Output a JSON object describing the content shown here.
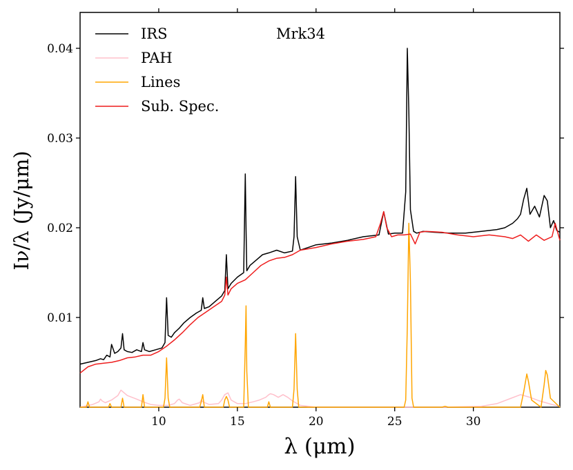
{
  "chart_data": {
    "type": "line",
    "annotation": "Mrk34",
    "xlabel": "λ (μm)",
    "ylabel": "Iν/λ (Jy/μm)",
    "xlim": [
      5.0,
      35.5
    ],
    "ylim": [
      0.0,
      0.044
    ],
    "xticks": [
      10,
      15,
      20,
      25,
      30
    ],
    "xtick_labels": [
      "10",
      "15",
      "20",
      "25",
      "30"
    ],
    "yticks": [
      0.01,
      0.02,
      0.03,
      0.04
    ],
    "ytick_labels": [
      "0.01",
      "0.02",
      "0.03",
      "0.04"
    ],
    "legend_position": "top-left",
    "series": [
      {
        "name": "IRS",
        "color": "#000000",
        "x": [
          5.0,
          5.5,
          6.0,
          6.3,
          6.5,
          6.7,
          6.9,
          7.0,
          7.2,
          7.4,
          7.6,
          7.7,
          7.8,
          8.0,
          8.3,
          8.6,
          8.9,
          9.0,
          9.1,
          9.4,
          9.8,
          10.2,
          10.4,
          10.5,
          10.6,
          10.8,
          11.0,
          11.3,
          11.6,
          12.0,
          12.4,
          12.7,
          12.8,
          12.9,
          13.2,
          13.6,
          14.0,
          14.2,
          14.3,
          14.4,
          14.6,
          15.0,
          15.4,
          15.5,
          15.55,
          15.6,
          15.8,
          16.2,
          16.6,
          17.0,
          17.5,
          18.0,
          18.5,
          18.6,
          18.7,
          18.8,
          19.0,
          19.5,
          20.0,
          21.0,
          22.0,
          23.0,
          24.0,
          24.3,
          24.6,
          25.0,
          25.5,
          25.7,
          25.8,
          25.9,
          26.0,
          26.2,
          26.4,
          26.8,
          27.5,
          28.5,
          29.5,
          30.5,
          31.5,
          32.0,
          32.5,
          32.8,
          33.0,
          33.2,
          33.4,
          33.6,
          33.9,
          34.2,
          34.5,
          34.7,
          34.9,
          35.1,
          35.3,
          35.5
        ],
        "y": [
          0.0048,
          0.005,
          0.0052,
          0.0054,
          0.0053,
          0.0058,
          0.0056,
          0.007,
          0.006,
          0.0062,
          0.0066,
          0.0082,
          0.0064,
          0.0062,
          0.0061,
          0.0064,
          0.0062,
          0.0072,
          0.0064,
          0.0062,
          0.0064,
          0.0066,
          0.0072,
          0.0122,
          0.008,
          0.0078,
          0.0083,
          0.0088,
          0.0094,
          0.01,
          0.0105,
          0.0108,
          0.0122,
          0.011,
          0.0112,
          0.0118,
          0.0124,
          0.013,
          0.017,
          0.0132,
          0.0138,
          0.0145,
          0.015,
          0.026,
          0.02,
          0.0152,
          0.0158,
          0.0164,
          0.017,
          0.0172,
          0.0175,
          0.0172,
          0.0174,
          0.019,
          0.0257,
          0.019,
          0.0175,
          0.0178,
          0.0181,
          0.0183,
          0.0186,
          0.019,
          0.0192,
          0.0218,
          0.0193,
          0.0194,
          0.0194,
          0.024,
          0.04,
          0.033,
          0.022,
          0.0196,
          0.0194,
          0.0196,
          0.0195,
          0.0194,
          0.0194,
          0.0196,
          0.0198,
          0.02,
          0.0205,
          0.021,
          0.0215,
          0.0232,
          0.0244,
          0.0215,
          0.0224,
          0.0212,
          0.0236,
          0.023,
          0.02,
          0.0208,
          0.0197,
          0.0195
        ]
      },
      {
        "name": "PAH",
        "color": "#ffc0cb",
        "x": [
          5.0,
          5.8,
          6.2,
          6.3,
          6.4,
          6.6,
          7.0,
          7.4,
          7.6,
          7.8,
          8.0,
          8.3,
          8.6,
          9.0,
          9.5,
          10.0,
          10.6,
          11.0,
          11.2,
          11.3,
          11.5,
          12.0,
          12.6,
          12.7,
          12.8,
          13.2,
          13.8,
          14.0,
          14.2,
          14.4,
          14.6,
          15.0,
          15.5,
          16.0,
          16.4,
          16.8,
          17.0,
          17.1,
          17.3,
          17.6,
          17.9,
          18.2,
          18.5,
          19.0,
          20.0,
          24.0,
          28.0,
          30.5,
          31.5,
          32.4,
          33.0,
          33.6,
          34.2,
          35.0,
          35.5
        ],
        "y": [
          0.0,
          0.0003,
          0.0006,
          0.0009,
          0.0007,
          0.0005,
          0.0008,
          0.0013,
          0.0019,
          0.0016,
          0.0013,
          0.0011,
          0.0009,
          0.0006,
          0.0003,
          0.0002,
          0.0002,
          0.0004,
          0.0008,
          0.0009,
          0.0005,
          0.0002,
          0.0005,
          0.0008,
          0.0006,
          0.0003,
          0.0004,
          0.0008,
          0.0014,
          0.0016,
          0.0008,
          0.0004,
          0.0004,
          0.0006,
          0.0008,
          0.0011,
          0.0014,
          0.0015,
          0.0014,
          0.0011,
          0.0014,
          0.0011,
          0.0007,
          0.0002,
          0.0,
          0.0,
          0.0,
          0.0001,
          0.0004,
          0.001,
          0.0014,
          0.0011,
          0.0007,
          0.0003,
          0.0001
        ]
      },
      {
        "name": "Lines",
        "color": "#ffa500",
        "x": [
          5.0,
          5.4,
          5.5,
          5.6,
          6.0,
          6.8,
          6.9,
          7.0,
          7.6,
          7.7,
          7.8,
          8.9,
          9.0,
          9.1,
          10.3,
          10.4,
          10.5,
          10.6,
          10.7,
          12.6,
          12.7,
          12.8,
          12.9,
          14.1,
          14.2,
          14.3,
          14.4,
          14.5,
          15.4,
          15.5,
          15.55,
          15.6,
          15.7,
          16.9,
          17.0,
          17.1,
          18.5,
          18.6,
          18.7,
          18.8,
          18.9,
          25.6,
          25.7,
          25.8,
          25.9,
          26.0,
          26.1,
          26.2,
          26.3,
          28.0,
          28.2,
          28.4,
          33.0,
          33.2,
          33.4,
          33.5,
          33.7,
          34.3,
          34.5,
          34.6,
          34.7,
          34.9,
          35.5
        ],
        "y": [
          0.0,
          0.0,
          0.0006,
          0.0,
          0.0,
          0.0,
          0.0004,
          0.0,
          0.0,
          0.001,
          0.0,
          0.0,
          0.0014,
          0.0,
          0.0,
          0.001,
          0.0055,
          0.001,
          0.0,
          0.0,
          0.0006,
          0.0014,
          0.0,
          0.0,
          0.0008,
          0.0012,
          0.0008,
          0.0,
          0.0,
          0.007,
          0.0113,
          0.004,
          0.0,
          0.0,
          0.0006,
          0.0,
          0.0,
          0.002,
          0.0082,
          0.002,
          0.0,
          0.0,
          0.0008,
          0.009,
          0.0205,
          0.014,
          0.001,
          0.0,
          0.0,
          0.0,
          0.0001,
          0.0,
          0.0,
          0.0017,
          0.0037,
          0.0029,
          0.0008,
          0.0,
          0.0025,
          0.0041,
          0.0036,
          0.001,
          0.0
        ]
      },
      {
        "name": "Sub. Spec.",
        "color": "#ee1c1c",
        "x": [
          5.0,
          5.5,
          6.0,
          6.5,
          7.0,
          7.5,
          8.0,
          8.5,
          9.0,
          9.5,
          10.0,
          10.5,
          11.0,
          11.5,
          12.0,
          12.5,
          13.0,
          13.5,
          14.0,
          14.2,
          14.3,
          14.4,
          14.6,
          15.0,
          15.5,
          16.0,
          16.5,
          17.0,
          17.5,
          18.0,
          18.5,
          19.0,
          20.0,
          21.0,
          22.0,
          23.0,
          23.8,
          24.1,
          24.3,
          24.5,
          24.8,
          25.2,
          25.6,
          26.0,
          26.3,
          26.6,
          27.0,
          28.0,
          29.0,
          30.0,
          31.0,
          32.0,
          32.5,
          33.0,
          33.5,
          34.0,
          34.5,
          35.0,
          35.2,
          35.5
        ],
        "y": [
          0.0038,
          0.0045,
          0.0048,
          0.0049,
          0.005,
          0.0052,
          0.0055,
          0.0056,
          0.0058,
          0.0058,
          0.0062,
          0.0068,
          0.0075,
          0.0083,
          0.0092,
          0.01,
          0.0106,
          0.0112,
          0.0118,
          0.0125,
          0.0145,
          0.0125,
          0.0132,
          0.0138,
          0.0142,
          0.015,
          0.0158,
          0.0163,
          0.0166,
          0.0167,
          0.017,
          0.0175,
          0.0178,
          0.0182,
          0.0185,
          0.0187,
          0.019,
          0.0205,
          0.0218,
          0.02,
          0.019,
          0.0192,
          0.0192,
          0.0193,
          0.0182,
          0.0195,
          0.0196,
          0.0195,
          0.0192,
          0.019,
          0.0192,
          0.019,
          0.0188,
          0.0192,
          0.0185,
          0.0192,
          0.0186,
          0.019,
          0.0205,
          0.0186
        ]
      }
    ]
  }
}
